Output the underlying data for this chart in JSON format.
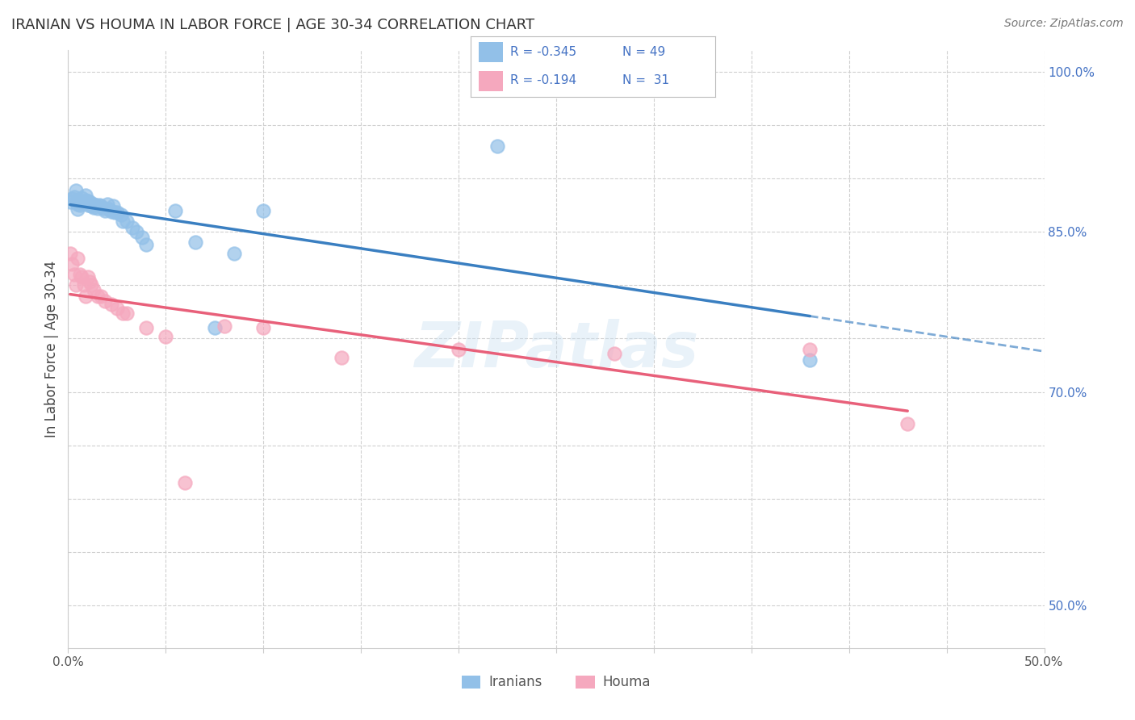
{
  "title": "IRANIAN VS HOUMA IN LABOR FORCE | AGE 30-34 CORRELATION CHART",
  "source": "Source: ZipAtlas.com",
  "ylabel": "In Labor Force | Age 30-34",
  "xlim": [
    0.0,
    0.5
  ],
  "ylim": [
    0.46,
    1.02
  ],
  "blue_color": "#92c0e8",
  "pink_color": "#f5a8be",
  "blue_line_color": "#3a7fc1",
  "pink_line_color": "#e8607a",
  "watermark": "ZIPatlas",
  "iranians_x": [
    0.001,
    0.002,
    0.003,
    0.004,
    0.005,
    0.005,
    0.005,
    0.006,
    0.006,
    0.007,
    0.007,
    0.008,
    0.009,
    0.009,
    0.01,
    0.01,
    0.01,
    0.011,
    0.011,
    0.012,
    0.012,
    0.013,
    0.013,
    0.014,
    0.015,
    0.016,
    0.017,
    0.018,
    0.019,
    0.02,
    0.021,
    0.022,
    0.023,
    0.024,
    0.025,
    0.027,
    0.028,
    0.03,
    0.033,
    0.035,
    0.038,
    0.04,
    0.055,
    0.065,
    0.075,
    0.085,
    0.1,
    0.22,
    0.38
  ],
  "iranians_y": [
    0.878,
    0.881,
    0.883,
    0.889,
    0.88,
    0.876,
    0.871,
    0.878,
    0.875,
    0.882,
    0.878,
    0.877,
    0.884,
    0.88,
    0.877,
    0.875,
    0.879,
    0.876,
    0.878,
    0.875,
    0.874,
    0.876,
    0.873,
    0.875,
    0.872,
    0.875,
    0.874,
    0.872,
    0.87,
    0.876,
    0.871,
    0.869,
    0.874,
    0.868,
    0.868,
    0.866,
    0.86,
    0.86,
    0.854,
    0.85,
    0.845,
    0.838,
    0.87,
    0.84,
    0.76,
    0.83,
    0.87,
    0.93,
    0.73
  ],
  "houma_x": [
    0.001,
    0.002,
    0.003,
    0.004,
    0.005,
    0.006,
    0.007,
    0.008,
    0.009,
    0.01,
    0.011,
    0.012,
    0.013,
    0.015,
    0.017,
    0.019,
    0.022,
    0.025,
    0.028,
    0.03,
    0.04,
    0.05,
    0.06,
    0.08,
    0.1,
    0.14,
    0.2,
    0.28,
    0.38,
    0.43
  ],
  "houma_y": [
    0.83,
    0.82,
    0.81,
    0.8,
    0.825,
    0.81,
    0.808,
    0.8,
    0.79,
    0.808,
    0.803,
    0.8,
    0.796,
    0.79,
    0.79,
    0.785,
    0.782,
    0.778,
    0.774,
    0.774,
    0.76,
    0.752,
    0.615,
    0.762,
    0.76,
    0.732,
    0.74,
    0.736,
    0.74,
    0.67
  ],
  "ytick_positions": [
    0.5,
    0.55,
    0.6,
    0.65,
    0.7,
    0.75,
    0.8,
    0.85,
    0.9,
    0.95,
    1.0
  ],
  "ytick_labels": [
    "50.0%",
    "",
    "",
    "",
    "70.0%",
    "",
    "",
    "85.0%",
    "",
    "",
    "100.0%"
  ],
  "xtick_positions": [
    0.0,
    0.05,
    0.1,
    0.15,
    0.2,
    0.25,
    0.3,
    0.35,
    0.4,
    0.45,
    0.5
  ],
  "xtick_labels": [
    "0.0%",
    "",
    "",
    "",
    "",
    "",
    "",
    "",
    "",
    "",
    "50.0%"
  ],
  "legend_labels": [
    "Iranians",
    "Houma"
  ]
}
